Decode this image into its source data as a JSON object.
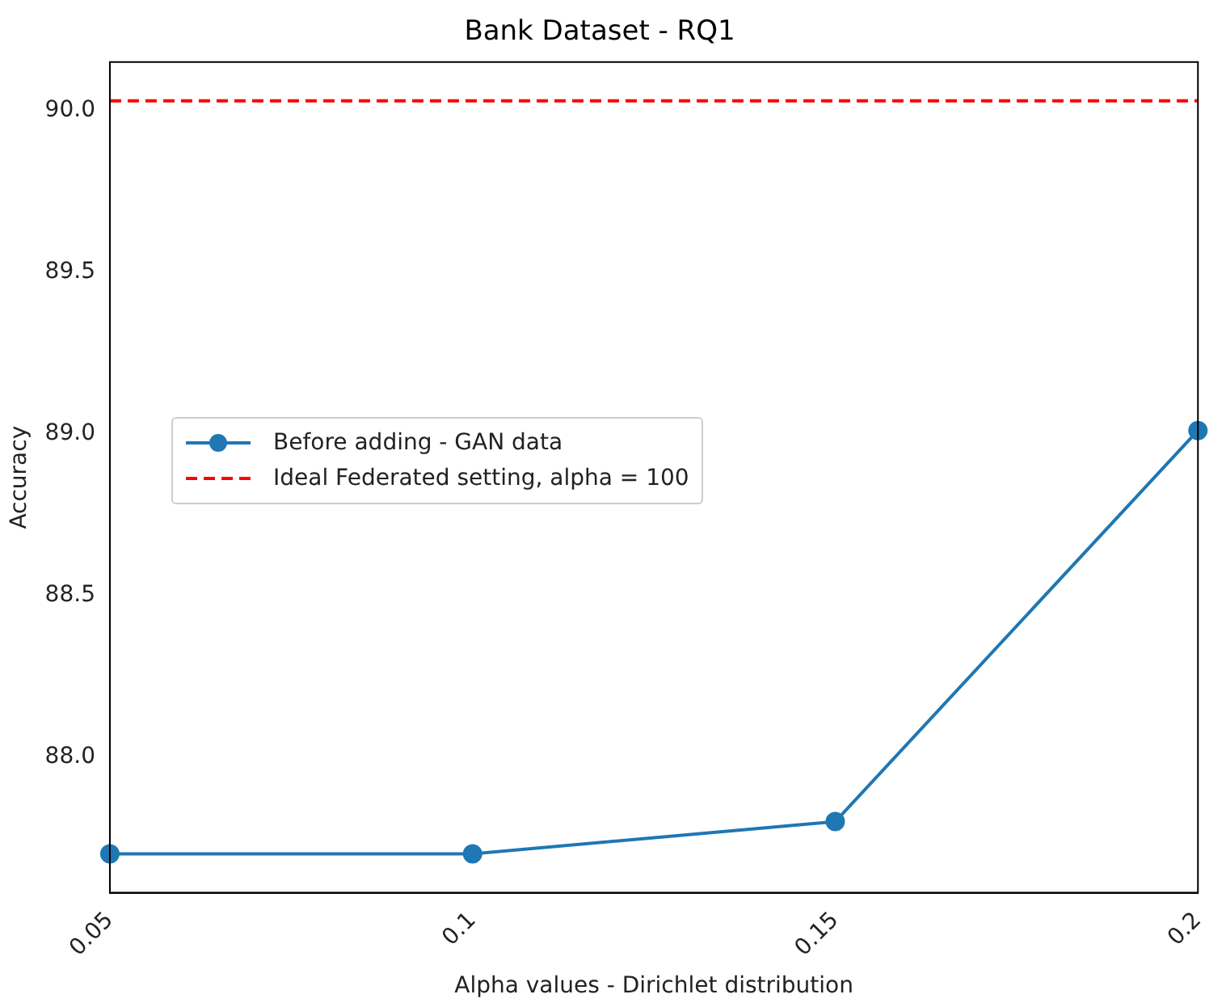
{
  "chart_data": {
    "type": "line",
    "title": "Bank Dataset - RQ1",
    "xlabel": "Alpha values - Dirichlet distribution",
    "ylabel": "Accuracy",
    "categories": [
      "0.05",
      "0.1",
      "0.15",
      "0.2"
    ],
    "series": [
      {
        "name": "Before adding - GAN data",
        "color": "#1f77b4",
        "values": [
          87.7,
          87.7,
          87.8,
          89.01
        ]
      },
      {
        "name": "Ideal Federated setting, alpha = 100",
        "color": "#ff0000",
        "line_style": "dashed",
        "marker": "none",
        "values": [
          90.03,
          90.03,
          90.03,
          90.03
        ]
      }
    ],
    "ylim": [
      87.58,
      90.15
    ],
    "yticks": [
      {
        "value": 88,
        "label": "88.0"
      },
      {
        "value": 88.5,
        "label": "88.5"
      },
      {
        "value": 89,
        "label": "89.0"
      },
      {
        "value": 89.5,
        "label": "89.5"
      },
      {
        "value": 90,
        "label": "90.0"
      }
    ],
    "marker": "circle",
    "line_style": "solid",
    "legend": "center left",
    "grid": false
  }
}
